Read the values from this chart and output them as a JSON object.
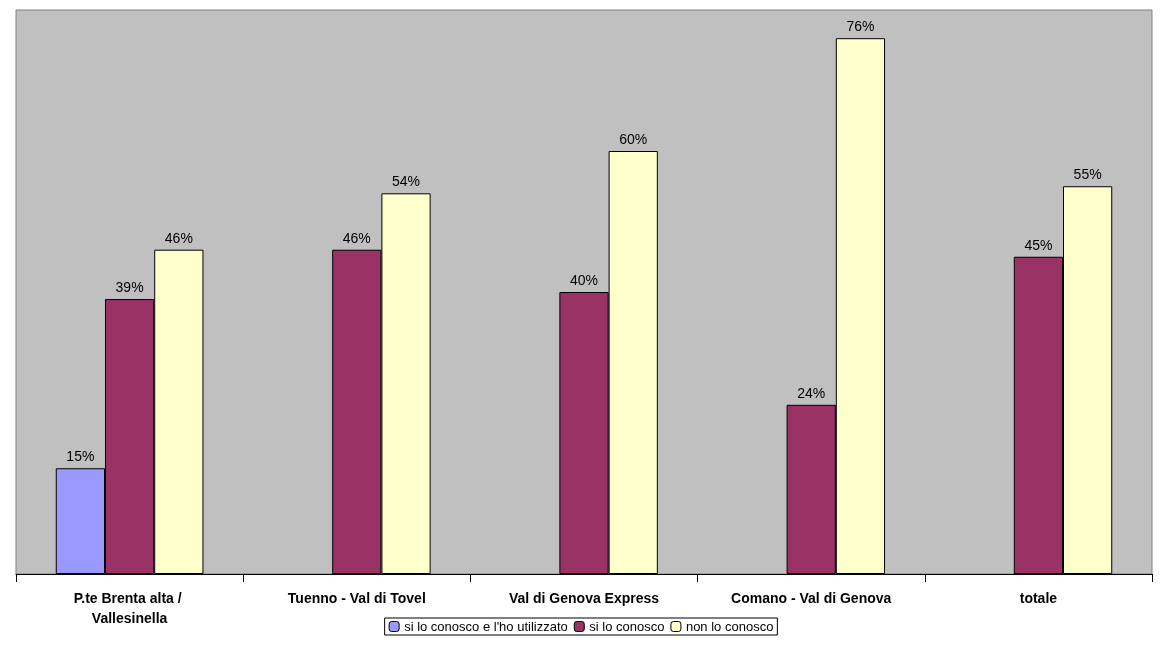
{
  "chart_data": {
    "type": "bar",
    "categories": [
      "P.te Brenta alta / Vallesinella",
      "Tuenno - Val di Tovel",
      "Val di Genova Express",
      "Comano - Val di Genova",
      "totale"
    ],
    "series": [
      {
        "name": "si lo conosco e l'ho utilizzato",
        "color": "#9999ff",
        "values": [
          15,
          null,
          null,
          null,
          null
        ],
        "value_labels": [
          "15%",
          null,
          null,
          null,
          null
        ]
      },
      {
        "name": "si lo conosco",
        "color": "#993366",
        "values": [
          39,
          46,
          40,
          24,
          45
        ],
        "value_labels": [
          "39%",
          "46%",
          "40%",
          "24%",
          "45%"
        ]
      },
      {
        "name": "non lo conosco",
        "color": "#ffffcc",
        "values": [
          46,
          54,
          60,
          76,
          55
        ],
        "value_labels": [
          "46%",
          "54%",
          "60%",
          "76%",
          "55%"
        ]
      }
    ],
    "legend": "bottom"
  }
}
